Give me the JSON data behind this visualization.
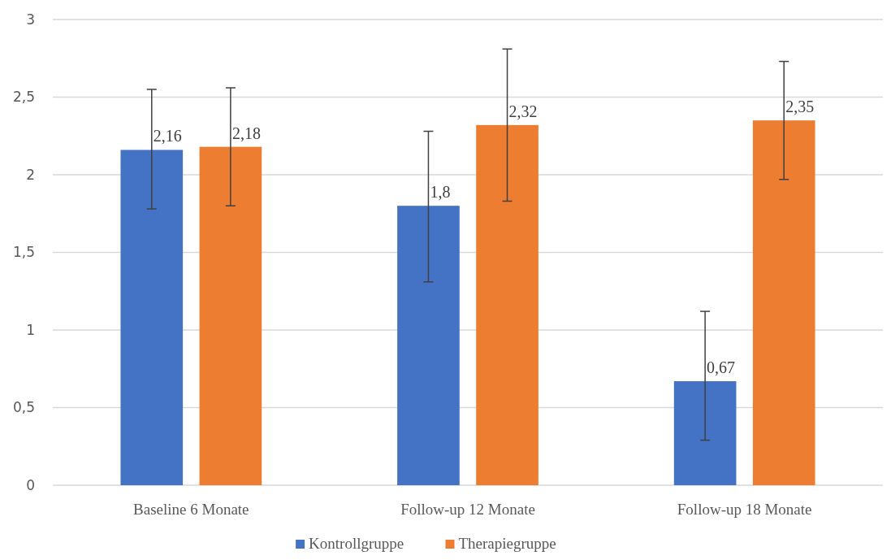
{
  "chart_data": {
    "type": "bar",
    "categories": [
      "Baseline 6 Monate",
      "Follow-up 12 Monate",
      "Follow-up 18 Monate"
    ],
    "series": [
      {
        "name": "Kontrollgruppe",
        "color": "#4472c4",
        "values": [
          2.16,
          1.8,
          0.67
        ],
        "value_labels": [
          "2,16",
          "1,8",
          "0,67"
        ],
        "errors": [
          [
            1.78,
            2.55
          ],
          [
            1.31,
            2.28
          ],
          [
            0.29,
            1.12
          ]
        ]
      },
      {
        "name": "Therapiegruppe",
        "color": "#ed7d31",
        "values": [
          2.18,
          2.32,
          2.35
        ],
        "value_labels": [
          "2,18",
          "2,32",
          "2,35"
        ],
        "errors": [
          [
            1.8,
            2.56
          ],
          [
            1.83,
            2.81
          ],
          [
            1.97,
            2.73
          ]
        ]
      }
    ],
    "ylim": [
      0,
      3
    ],
    "yticks": [
      0,
      {
        "value": 0.5,
        "label": "0,5"
      },
      1,
      {
        "value": 1.5,
        "label": "1,5"
      },
      2,
      {
        "value": 2.5,
        "label": "2,5"
      },
      3
    ],
    "grid": "y",
    "legend": "bottom"
  }
}
